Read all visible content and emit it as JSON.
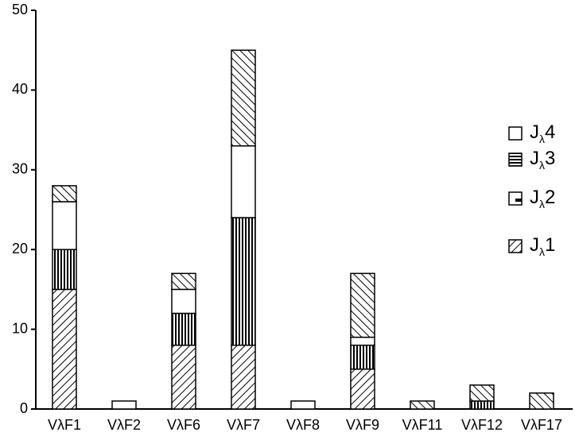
{
  "chart_data": {
    "type": "stacked-bar",
    "categories": [
      "VλF1",
      "VλF2",
      "VλF6",
      "VλF7",
      "VλF8",
      "VλF9",
      "VλF11",
      "VλF12",
      "VλF17"
    ],
    "series": [
      {
        "name": "Jλ1",
        "values": [
          15,
          0,
          8,
          8,
          0,
          5,
          0,
          0,
          0
        ]
      },
      {
        "name": "Jλ2",
        "values": [
          2,
          0,
          2,
          12,
          0,
          8,
          1,
          2,
          2
        ]
      },
      {
        "name": "Jλ3",
        "values": [
          5,
          0,
          4,
          16,
          0,
          3,
          0,
          1,
          0
        ]
      },
      {
        "name": "Jλ4",
        "values": [
          6,
          1,
          3,
          9,
          1,
          1,
          0,
          0,
          0
        ]
      }
    ],
    "ylim": [
      0,
      50
    ],
    "yticks": [
      0,
      10,
      20,
      30,
      40,
      50
    ]
  }
}
